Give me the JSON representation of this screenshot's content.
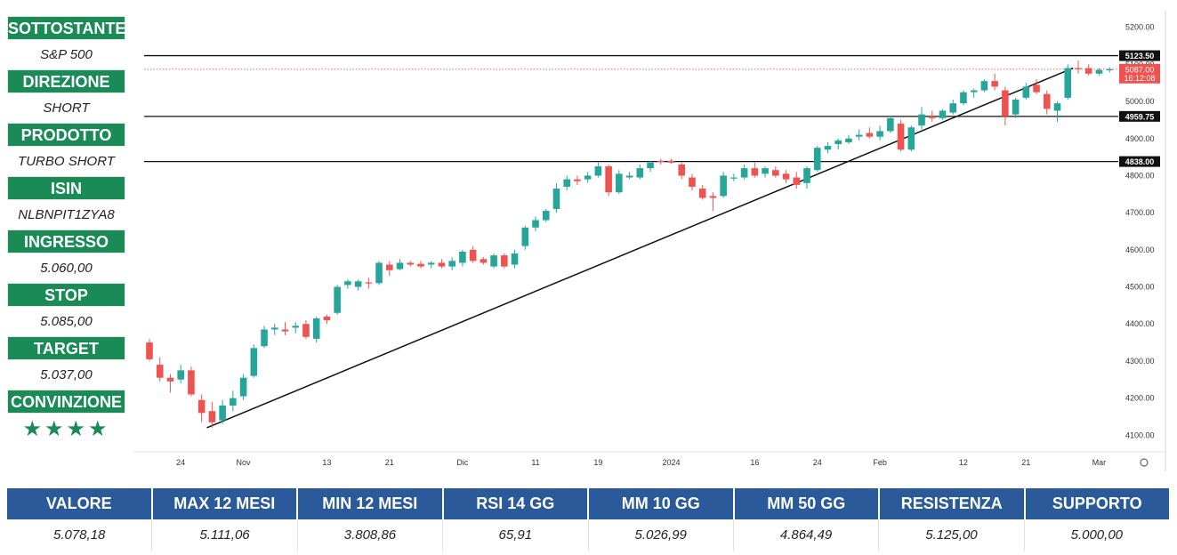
{
  "sidebar": {
    "items": [
      {
        "label": "SOTTOSTANTE",
        "value": "S&P 500"
      },
      {
        "label": "DIREZIONE",
        "value": "SHORT"
      },
      {
        "label": "PRODOTTO",
        "value": "TURBO SHORT"
      },
      {
        "label": "ISIN",
        "value": "NLBNPIT1ZYA8"
      },
      {
        "label": "INGRESSO",
        "value": "5.060,00"
      },
      {
        "label": "STOP",
        "value": "5.085,00"
      },
      {
        "label": "TARGET",
        "value": "5.037,00"
      }
    ],
    "conviction_label": "CONVINZIONE",
    "conviction_stars": "★★★★"
  },
  "stats": {
    "headers": [
      "VALORE",
      "MAX 12 MESI",
      "MIN 12 MESI",
      "RSI 14 GG",
      "MM 10 GG",
      "MM 50 GG",
      "RESISTENZA",
      "SUPPORTO"
    ],
    "values": [
      "5.078,18",
      "5.111,06",
      "3.808,86",
      "65,91",
      "5.026,99",
      "4.864,49",
      "5.125,00",
      "5.000,00"
    ]
  },
  "colors": {
    "up": "#26a69a",
    "down": "#ef5350",
    "label_green": "#1a8a57",
    "header_blue": "#2a5a9a"
  },
  "chart_data": {
    "type": "candlestick",
    "ylim": [
      4060,
      5240
    ],
    "yticks": [
      4100,
      4200,
      4300,
      4400,
      4500,
      4600,
      4700,
      4800,
      4900,
      5000,
      5100,
      5200
    ],
    "ytick_labels": [
      "4100.00",
      "4200.00",
      "4300.00",
      "4400.00",
      "4500.00",
      "4600.00",
      "4700.00",
      "4800.00",
      "4900.00",
      "5000.00",
      "5100.00",
      "5200.00"
    ],
    "xticks": [
      {
        "label": "24",
        "idx": 3
      },
      {
        "label": "Nov",
        "idx": 9
      },
      {
        "label": "13",
        "idx": 17
      },
      {
        "label": "21",
        "idx": 23
      },
      {
        "label": "Dic",
        "idx": 30
      },
      {
        "label": "11",
        "idx": 37
      },
      {
        "label": "19",
        "idx": 43
      },
      {
        "label": "2024",
        "idx": 50
      },
      {
        "label": "16",
        "idx": 58
      },
      {
        "label": "24",
        "idx": 64
      },
      {
        "label": "Feb",
        "idx": 70
      },
      {
        "label": "12",
        "idx": 78
      },
      {
        "label": "21",
        "idx": 84
      },
      {
        "label": "Mar",
        "idx": 91
      }
    ],
    "horizontal_levels": [
      {
        "value": 5123.5,
        "label": "5123.50",
        "style": "solid"
      },
      {
        "value": 4959.75,
        "label": "4959.75",
        "style": "solid"
      },
      {
        "value": 4838.0,
        "label": "4838.00",
        "style": "solid"
      }
    ],
    "last_price": {
      "value": 5087.0,
      "label": "5087.00",
      "countdown": "16:12:08"
    },
    "trendline": {
      "from": {
        "idx": 5.5,
        "value": 4120
      },
      "to": {
        "idx": 88.5,
        "value": 5090
      }
    },
    "candles": [
      {
        "o": 4350,
        "h": 4360,
        "l": 4300,
        "c": 4305
      },
      {
        "o": 4290,
        "h": 4310,
        "l": 4245,
        "c": 4255
      },
      {
        "o": 4255,
        "h": 4265,
        "l": 4215,
        "c": 4245
      },
      {
        "o": 4250,
        "h": 4290,
        "l": 4240,
        "c": 4275
      },
      {
        "o": 4275,
        "h": 4285,
        "l": 4205,
        "c": 4210
      },
      {
        "o": 4195,
        "h": 4210,
        "l": 4135,
        "c": 4160
      },
      {
        "o": 4165,
        "h": 4190,
        "l": 4120,
        "c": 4135
      },
      {
        "o": 4140,
        "h": 4195,
        "l": 4130,
        "c": 4180
      },
      {
        "o": 4180,
        "h": 4220,
        "l": 4165,
        "c": 4200
      },
      {
        "o": 4205,
        "h": 4265,
        "l": 4195,
        "c": 4255
      },
      {
        "o": 4260,
        "h": 4345,
        "l": 4255,
        "c": 4335
      },
      {
        "o": 4340,
        "h": 4395,
        "l": 4335,
        "c": 4385
      },
      {
        "o": 4385,
        "h": 4400,
        "l": 4370,
        "c": 4390
      },
      {
        "o": 4385,
        "h": 4405,
        "l": 4370,
        "c": 4380
      },
      {
        "o": 4390,
        "h": 4405,
        "l": 4375,
        "c": 4395
      },
      {
        "o": 4400,
        "h": 4410,
        "l": 4360,
        "c": 4365
      },
      {
        "o": 4360,
        "h": 4420,
        "l": 4350,
        "c": 4415
      },
      {
        "o": 4420,
        "h": 4425,
        "l": 4400,
        "c": 4410
      },
      {
        "o": 4430,
        "h": 4505,
        "l": 4425,
        "c": 4500
      },
      {
        "o": 4505,
        "h": 4520,
        "l": 4495,
        "c": 4515
      },
      {
        "o": 4500,
        "h": 4520,
        "l": 4490,
        "c": 4515
      },
      {
        "o": 4512,
        "h": 4525,
        "l": 4495,
        "c": 4510
      },
      {
        "o": 4510,
        "h": 4570,
        "l": 4505,
        "c": 4565
      },
      {
        "o": 4560,
        "h": 4570,
        "l": 4530,
        "c": 4545
      },
      {
        "o": 4548,
        "h": 4575,
        "l": 4545,
        "c": 4565
      },
      {
        "o": 4565,
        "h": 4570,
        "l": 4555,
        "c": 4560
      },
      {
        "o": 4562,
        "h": 4570,
        "l": 4550,
        "c": 4555
      },
      {
        "o": 4560,
        "h": 4570,
        "l": 4550,
        "c": 4565
      },
      {
        "o": 4565,
        "h": 4575,
        "l": 4550,
        "c": 4555
      },
      {
        "o": 4555,
        "h": 4580,
        "l": 4545,
        "c": 4570
      },
      {
        "o": 4565,
        "h": 4600,
        "l": 4555,
        "c": 4595
      },
      {
        "o": 4600,
        "h": 4610,
        "l": 4565,
        "c": 4570
      },
      {
        "o": 4575,
        "h": 4580,
        "l": 4560,
        "c": 4565
      },
      {
        "o": 4555,
        "h": 4590,
        "l": 4550,
        "c": 4585
      },
      {
        "o": 4585,
        "h": 4590,
        "l": 4550,
        "c": 4555
      },
      {
        "o": 4560,
        "h": 4600,
        "l": 4550,
        "c": 4590
      },
      {
        "o": 4610,
        "h": 4665,
        "l": 4600,
        "c": 4660
      },
      {
        "o": 4660,
        "h": 4690,
        "l": 4650,
        "c": 4680
      },
      {
        "o": 4680,
        "h": 4710,
        "l": 4675,
        "c": 4705
      },
      {
        "o": 4710,
        "h": 4780,
        "l": 4700,
        "c": 4765
      },
      {
        "o": 4770,
        "h": 4800,
        "l": 4760,
        "c": 4790
      },
      {
        "o": 4790,
        "h": 4800,
        "l": 4775,
        "c": 4785
      },
      {
        "o": 4790,
        "h": 4810,
        "l": 4780,
        "c": 4800
      },
      {
        "o": 4800,
        "h": 4835,
        "l": 4795,
        "c": 4825
      },
      {
        "o": 4825,
        "h": 4830,
        "l": 4745,
        "c": 4755
      },
      {
        "o": 4755,
        "h": 4815,
        "l": 4750,
        "c": 4805
      },
      {
        "o": 4795,
        "h": 4810,
        "l": 4790,
        "c": 4800
      },
      {
        "o": 4795,
        "h": 4830,
        "l": 4790,
        "c": 4820
      },
      {
        "o": 4820,
        "h": 4840,
        "l": 4810,
        "c": 4835
      },
      {
        "o": 4840,
        "h": 4845,
        "l": 4830,
        "c": 4838
      },
      {
        "o": 4840,
        "h": 4845,
        "l": 4832,
        "c": 4835
      },
      {
        "o": 4830,
        "h": 4835,
        "l": 4790,
        "c": 4800
      },
      {
        "o": 4795,
        "h": 4805,
        "l": 4760,
        "c": 4770
      },
      {
        "o": 4765,
        "h": 4775,
        "l": 4735,
        "c": 4740
      },
      {
        "o": 4745,
        "h": 4755,
        "l": 4705,
        "c": 4740
      },
      {
        "o": 4745,
        "h": 4810,
        "l": 4740,
        "c": 4800
      },
      {
        "o": 4795,
        "h": 4805,
        "l": 4785,
        "c": 4795
      },
      {
        "o": 4795,
        "h": 4830,
        "l": 4790,
        "c": 4820
      },
      {
        "o": 4820,
        "h": 4835,
        "l": 4795,
        "c": 4800
      },
      {
        "o": 4805,
        "h": 4825,
        "l": 4795,
        "c": 4820
      },
      {
        "o": 4815,
        "h": 4825,
        "l": 4795,
        "c": 4800
      },
      {
        "o": 4805,
        "h": 4815,
        "l": 4780,
        "c": 4790
      },
      {
        "o": 4795,
        "h": 4810,
        "l": 4765,
        "c": 4775
      },
      {
        "o": 4780,
        "h": 4825,
        "l": 4765,
        "c": 4820
      },
      {
        "o": 4815,
        "h": 4880,
        "l": 4810,
        "c": 4875
      },
      {
        "o": 4870,
        "h": 4890,
        "l": 4860,
        "c": 4880
      },
      {
        "o": 4885,
        "h": 4900,
        "l": 4870,
        "c": 4895
      },
      {
        "o": 4890,
        "h": 4910,
        "l": 4885,
        "c": 4900
      },
      {
        "o": 4905,
        "h": 4925,
        "l": 4895,
        "c": 4910
      },
      {
        "o": 4915,
        "h": 4930,
        "l": 4900,
        "c": 4905
      },
      {
        "o": 4905,
        "h": 4935,
        "l": 4895,
        "c": 4920
      },
      {
        "o": 4920,
        "h": 4960,
        "l": 4915,
        "c": 4955
      },
      {
        "o": 4940,
        "h": 4950,
        "l": 4865,
        "c": 4870
      },
      {
        "o": 4870,
        "h": 4935,
        "l": 4865,
        "c": 4930
      },
      {
        "o": 4935,
        "h": 4985,
        "l": 4925,
        "c": 4965
      },
      {
        "o": 4960,
        "h": 4975,
        "l": 4945,
        "c": 4955
      },
      {
        "o": 4955,
        "h": 4980,
        "l": 4950,
        "c": 4975
      },
      {
        "o": 4970,
        "h": 5005,
        "l": 4965,
        "c": 4995
      },
      {
        "o": 4995,
        "h": 5030,
        "l": 4990,
        "c": 5025
      },
      {
        "o": 5025,
        "h": 5035,
        "l": 5010,
        "c": 5030
      },
      {
        "o": 5030,
        "h": 5060,
        "l": 5025,
        "c": 5055
      },
      {
        "o": 5055,
        "h": 5075,
        "l": 5030,
        "c": 5040
      },
      {
        "o": 5030,
        "h": 5040,
        "l": 4935,
        "c": 4960
      },
      {
        "o": 4965,
        "h": 5010,
        "l": 4955,
        "c": 5005
      },
      {
        "o": 5010,
        "h": 5050,
        "l": 5005,
        "c": 5040
      },
      {
        "o": 5045,
        "h": 5060,
        "l": 5020,
        "c": 5025
      },
      {
        "o": 5020,
        "h": 5030,
        "l": 4965,
        "c": 4980
      },
      {
        "o": 4975,
        "h": 5000,
        "l": 4945,
        "c": 4995
      },
      {
        "o": 5010,
        "h": 5100,
        "l": 5005,
        "c": 5090
      },
      {
        "o": 5090,
        "h": 5110,
        "l": 5075,
        "c": 5088
      },
      {
        "o": 5090,
        "h": 5100,
        "l": 5070,
        "c": 5075
      },
      {
        "o": 5075,
        "h": 5090,
        "l": 5070,
        "c": 5085
      },
      {
        "o": 5085,
        "h": 5092,
        "l": 5078,
        "c": 5087
      }
    ]
  }
}
